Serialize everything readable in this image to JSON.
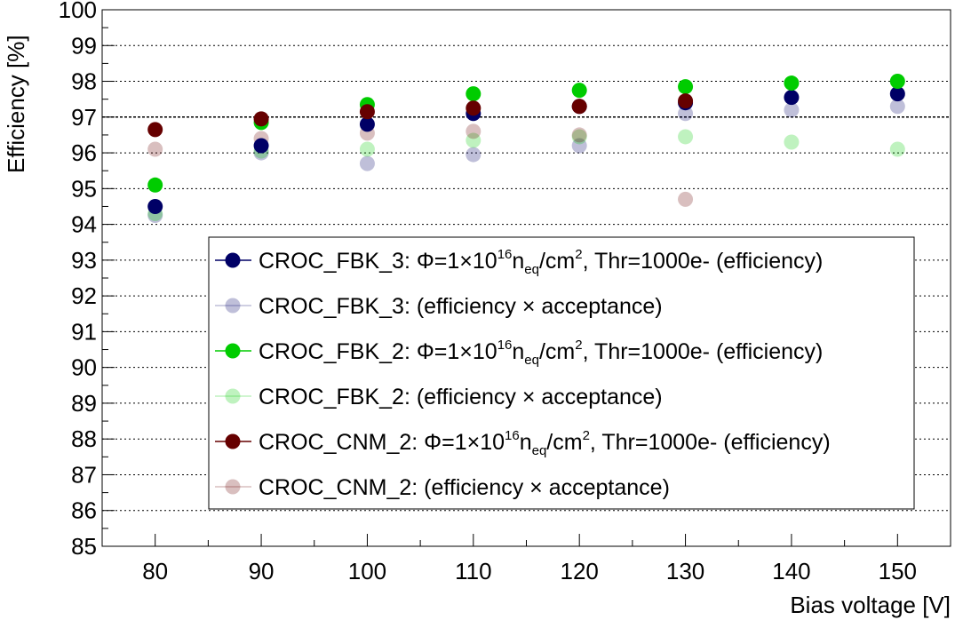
{
  "chart_data": {
    "type": "scatter",
    "xlabel": "Bias voltage [V]",
    "ylabel": "Efficiency [%]",
    "xlim": [
      75,
      155
    ],
    "ylim": [
      85,
      100
    ],
    "xticks": [
      80,
      90,
      100,
      110,
      120,
      130,
      140,
      150
    ],
    "yticks": [
      85,
      86,
      87,
      88,
      89,
      90,
      91,
      92,
      93,
      94,
      95,
      96,
      97,
      98,
      99,
      100
    ],
    "grid_y": true,
    "reference_line": {
      "y": 97,
      "style": "dashed"
    },
    "legend_position": "lower-right",
    "series": [
      {
        "name": "CROC_FBK_3",
        "label_prefix": "CROC_FBK_3:",
        "kind": "efficiency",
        "color": "#000066",
        "opacity": 1.0,
        "x": [
          80,
          90,
          100,
          110,
          120,
          130,
          140,
          150
        ],
        "values": [
          94.5,
          96.2,
          96.8,
          97.1,
          97.3,
          97.4,
          97.55,
          97.65
        ]
      },
      {
        "name": "CROC_FBK_3 acceptance",
        "label_prefix": "CROC_FBK_3:",
        "kind": "acceptance",
        "color": "#000066",
        "opacity": 0.25,
        "x": [
          80,
          90,
          100,
          110,
          120,
          130,
          140,
          150
        ],
        "values": [
          94.25,
          96.0,
          95.7,
          95.95,
          96.2,
          97.1,
          97.2,
          97.3
        ]
      },
      {
        "name": "CROC_FBK_2",
        "label_prefix": "CROC_FBK_2:",
        "kind": "efficiency",
        "color": "#00cc00",
        "opacity": 1.0,
        "x": [
          80,
          90,
          100,
          110,
          120,
          130,
          140,
          150
        ],
        "values": [
          95.1,
          96.85,
          97.35,
          97.65,
          97.75,
          97.85,
          97.95,
          98.0
        ]
      },
      {
        "name": "CROC_FBK_2 acceptance",
        "label_prefix": "CROC_FBK_2:",
        "kind": "acceptance",
        "color": "#00cc00",
        "opacity": 0.25,
        "x": [
          80,
          90,
          100,
          110,
          120,
          130,
          140,
          150
        ],
        "values": [
          94.3,
          96.05,
          96.1,
          96.35,
          96.45,
          96.45,
          96.3,
          96.1
        ]
      },
      {
        "name": "CROC_CNM_2",
        "label_prefix": "CROC_CNM_2:",
        "kind": "efficiency",
        "color": "#660000",
        "opacity": 1.0,
        "x": [
          80,
          90,
          100,
          110,
          120,
          130
        ],
        "values": [
          96.65,
          96.95,
          97.15,
          97.25,
          97.3,
          97.45
        ]
      },
      {
        "name": "CROC_CNM_2 acceptance",
        "label_prefix": "CROC_CNM_2:",
        "kind": "acceptance",
        "color": "#660000",
        "opacity": 0.25,
        "x": [
          80,
          90,
          100,
          110,
          120,
          130
        ],
        "values": [
          96.1,
          96.4,
          96.55,
          96.6,
          96.5,
          94.7
        ]
      }
    ],
    "legend_strings": {
      "phi": "Φ=1×10",
      "exp": "16",
      "n": "n",
      "sub": "eq",
      "unit": "/cm",
      "sq": "2",
      "rest": ", Thr=1000e- (efficiency)",
      "acc": " (efficiency × acceptance)"
    }
  }
}
